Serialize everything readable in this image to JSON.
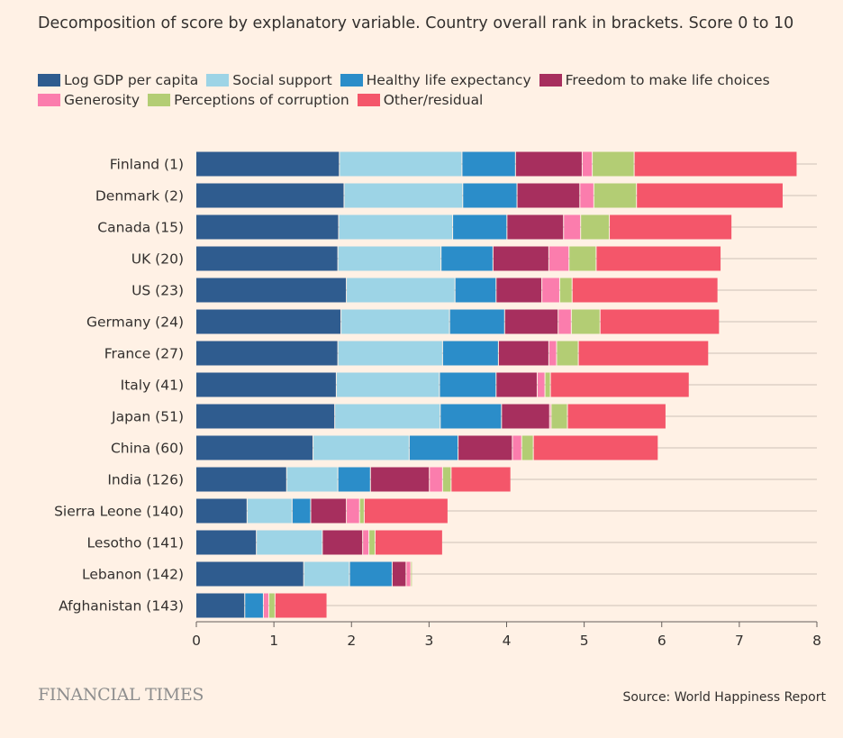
{
  "chart_data": {
    "type": "bar",
    "orientation": "horizontal",
    "stacked": true,
    "title": "Decomposition of score by explanatory variable. Country overall rank in brackets. Score 0 to 10",
    "xlim": [
      0,
      8
    ],
    "xticks": [
      "0",
      "1",
      "2",
      "3",
      "4",
      "5",
      "6",
      "7",
      "8"
    ],
    "grid": true,
    "legend_position": "top",
    "categories": [
      "Finland (1)",
      "Denmark (2)",
      "Canada (15)",
      "UK (20)",
      "US (23)",
      "Germany (24)",
      "France (27)",
      "Italy (41)",
      "Japan (51)",
      "China (60)",
      "India (126)",
      "Sierra Leone (140)",
      "Lesotho (141)",
      "Lebanon (142)",
      "Afghanistan (143)"
    ],
    "series": [
      {
        "name": "Log GDP per capita",
        "color": "#2f5c8f",
        "values": [
          1.85,
          1.91,
          1.84,
          1.83,
          1.94,
          1.87,
          1.83,
          1.81,
          1.79,
          1.51,
          1.17,
          0.66,
          0.78,
          1.39,
          0.63
        ]
      },
      {
        "name": "Social support",
        "color": "#9dd4e6",
        "values": [
          1.58,
          1.53,
          1.47,
          1.33,
          1.4,
          1.4,
          1.35,
          1.33,
          1.36,
          1.24,
          0.66,
          0.58,
          0.85,
          0.59,
          0.0
        ]
      },
      {
        "name": "Healthy life expectancy",
        "color": "#2b8dc9",
        "values": [
          0.69,
          0.7,
          0.7,
          0.67,
          0.53,
          0.71,
          0.72,
          0.73,
          0.79,
          0.63,
          0.42,
          0.24,
          0.0,
          0.55,
          0.24
        ]
      },
      {
        "name": "Freedom to make life choices",
        "color": "#a72f5e",
        "values": [
          0.86,
          0.81,
          0.73,
          0.72,
          0.59,
          0.69,
          0.65,
          0.53,
          0.62,
          0.7,
          0.76,
          0.46,
          0.52,
          0.18,
          0.0
        ]
      },
      {
        "name": "Generosity",
        "color": "#fb7dad",
        "values": [
          0.13,
          0.18,
          0.22,
          0.26,
          0.23,
          0.17,
          0.1,
          0.1,
          0.02,
          0.12,
          0.17,
          0.17,
          0.08,
          0.06,
          0.07
        ]
      },
      {
        "name": "Perceptions of corruption",
        "color": "#b3cd74",
        "values": [
          0.54,
          0.55,
          0.37,
          0.35,
          0.16,
          0.37,
          0.28,
          0.07,
          0.21,
          0.15,
          0.11,
          0.06,
          0.08,
          0.02,
          0.08
        ]
      },
      {
        "name": "Other/residual",
        "color": "#f4566a",
        "values": [
          2.1,
          1.89,
          1.58,
          1.61,
          1.88,
          1.54,
          1.68,
          1.79,
          1.27,
          1.61,
          0.77,
          1.08,
          0.87,
          0.0,
          0.67
        ]
      }
    ]
  },
  "footer": {
    "logo": "FINANCIAL TIMES",
    "source": "Source: World Happiness Report"
  }
}
